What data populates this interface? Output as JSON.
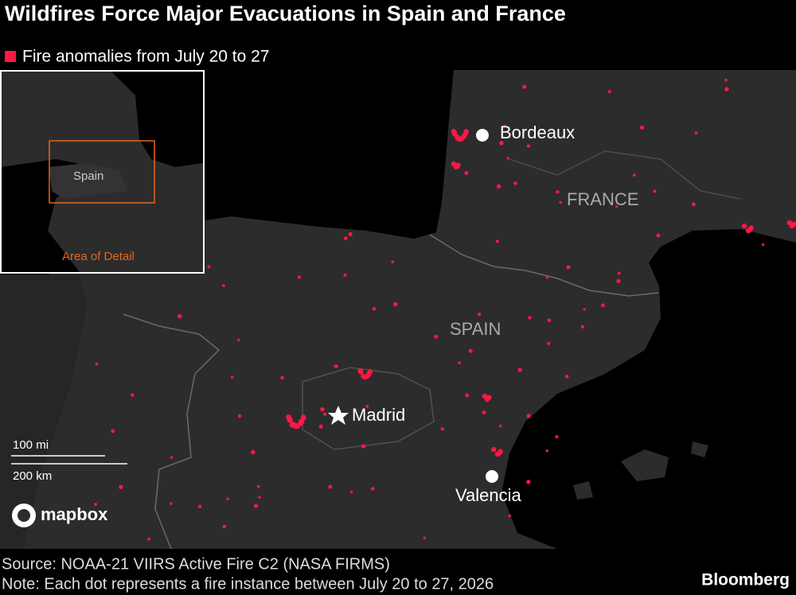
{
  "title": "Wildfires Force Major Evacuations in Spain and France",
  "legend": {
    "label": "Fire anomalies from July 20 to 27",
    "color": "#ff1744"
  },
  "map": {
    "cities": [
      {
        "label": "Bordeaux"
      },
      {
        "label": "Madrid"
      },
      {
        "label": "Valencia"
      }
    ],
    "countries": [
      "FRANCE",
      "SPAIN"
    ],
    "scale": {
      "miles": "100 mi",
      "km": "200 km"
    },
    "attribution": "mapbox"
  },
  "inset": {
    "country": "Spain",
    "caption": "Area of Detail"
  },
  "footer": {
    "source": "Source: NOAA-21 VIIRS Active Fire C2 (NASA FIRMS)",
    "note": "Note: Each dot represents a fire instance between July 20 to 27, 2026",
    "brand": "Bloomberg"
  }
}
